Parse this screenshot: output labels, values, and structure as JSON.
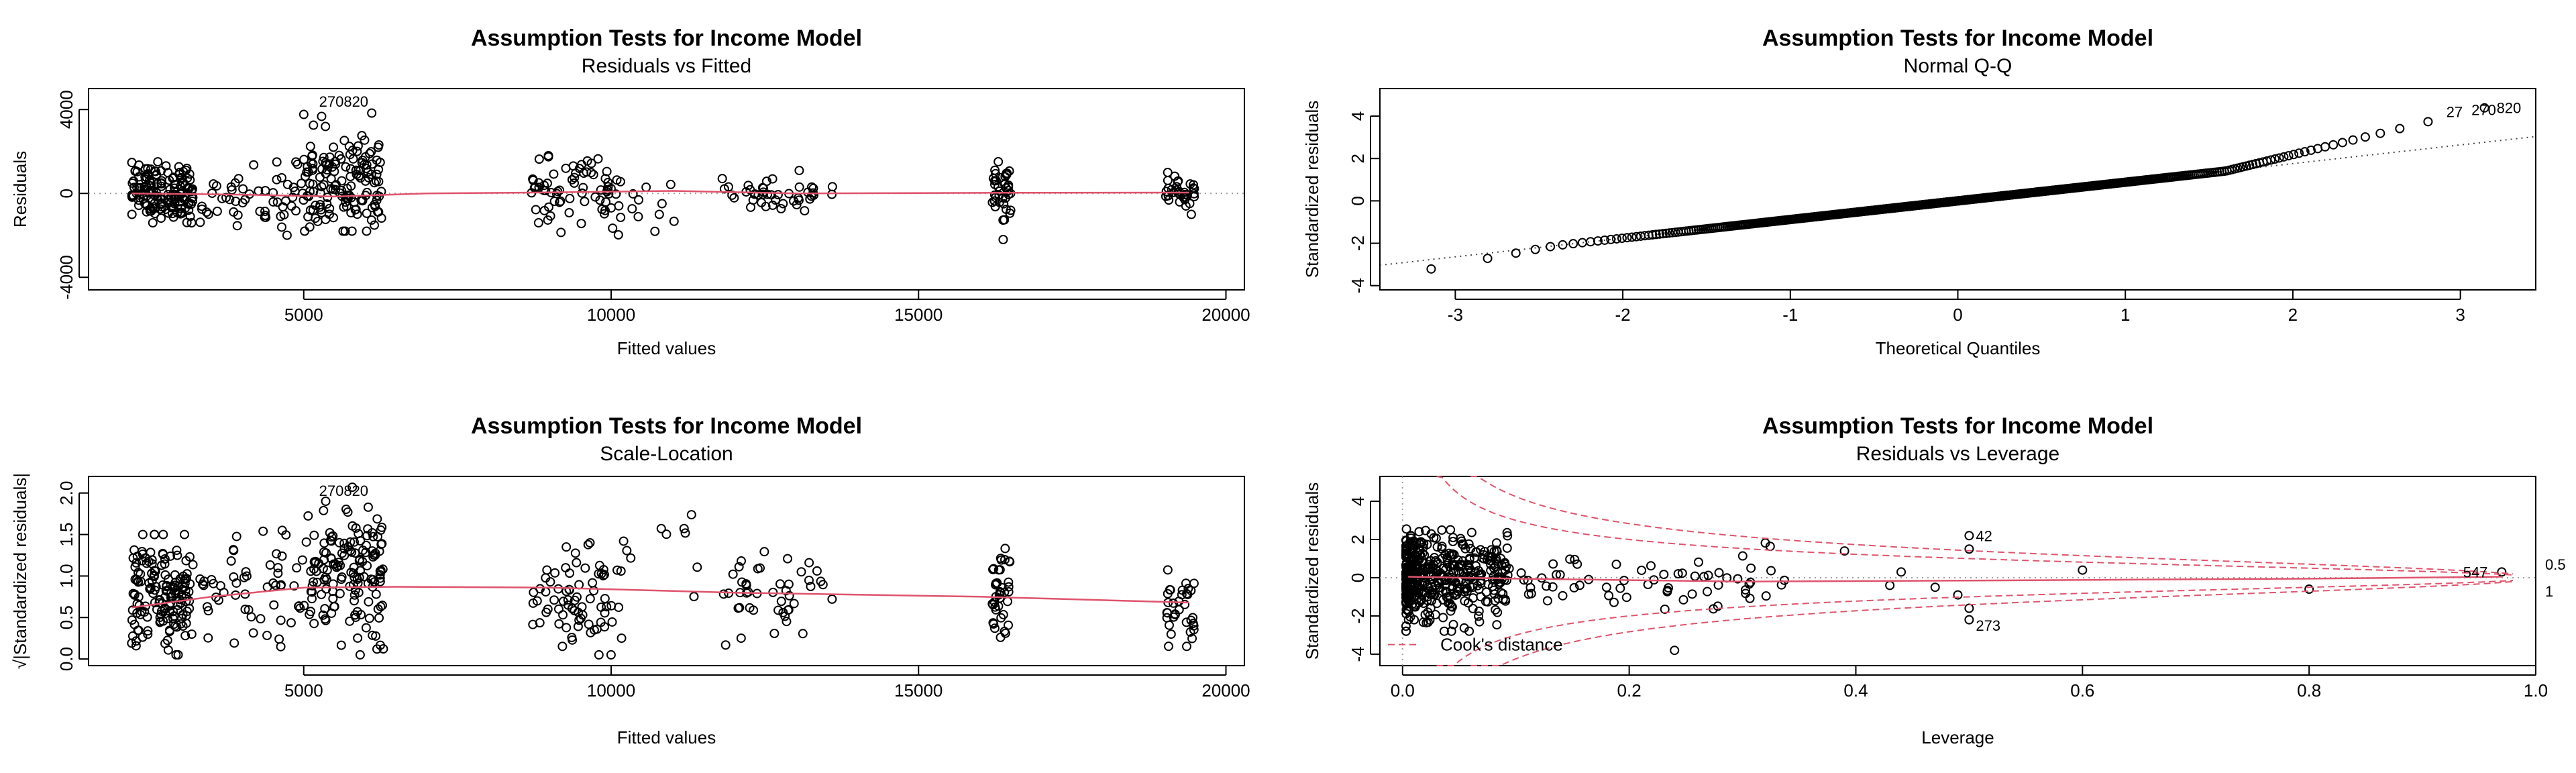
{
  "chart_data": [
    {
      "type": "scatter",
      "title": "Assumption Tests for Income Model",
      "subtitle": "Residuals vs Fitted",
      "xlabel": "Fitted values",
      "ylabel": "Residuals",
      "xlim": [
        1500,
        20300
      ],
      "ylim": [
        -4600,
        5000
      ],
      "xticks": [
        5000,
        10000,
        15000,
        20000
      ],
      "yticks": [
        -4000,
        0,
        4000
      ],
      "reference_line": {
        "y": 0,
        "style": "dotted",
        "color": "#9e9e9e"
      },
      "smooth_color": "#df536b",
      "smooth": [
        [
          2200,
          0
        ],
        [
          4000,
          -60
        ],
        [
          5500,
          -150
        ],
        [
          7000,
          0
        ],
        [
          9000,
          50
        ],
        [
          11000,
          120
        ],
        [
          13000,
          0
        ],
        [
          16400,
          30
        ],
        [
          19400,
          40
        ]
      ],
      "point_labels": [
        {
          "text": "270820",
          "x": 5650,
          "y": 4400
        }
      ],
      "clusters": [
        {
          "x": [
            2200,
            3200
          ],
          "y": [
            -1400,
            1900
          ],
          "n": 160
        },
        {
          "x": [
            3300,
            5000
          ],
          "y": [
            -2500,
            1500
          ],
          "n": 55
        },
        {
          "x": [
            5000,
            6300
          ],
          "y": [
            -1800,
            4400
          ],
          "n": 150
        },
        {
          "x": [
            8700,
            10200
          ],
          "y": [
            -2000,
            1800
          ],
          "n": 75
        },
        {
          "x": [
            10200,
            11500
          ],
          "y": [
            -3300,
            500
          ],
          "n": 10
        },
        {
          "x": [
            11800,
            13600
          ],
          "y": [
            -1500,
            1400
          ],
          "n": 45
        },
        {
          "x": [
            16200,
            16500
          ],
          "y": [
            -2200,
            1600
          ],
          "n": 40
        },
        {
          "x": [
            19000,
            19500
          ],
          "y": [
            -1000,
            1000
          ],
          "n": 35
        }
      ]
    },
    {
      "type": "scatter",
      "title": "Assumption Tests for Income Model",
      "subtitle": "Normal Q-Q",
      "xlabel": "Theoretical Quantiles",
      "ylabel": "Standardized residuals",
      "xlim": [
        -3.45,
        3.45
      ],
      "ylim": [
        -4.2,
        5.3
      ],
      "xticks": [
        -3,
        -2,
        -1,
        0,
        1,
        2,
        3
      ],
      "yticks": [
        -4,
        -2,
        0,
        2,
        4
      ],
      "reference_line": {
        "slope": 0.88,
        "intercept": 0,
        "style": "dotted",
        "color": "#444444"
      },
      "n_points": 600,
      "point_labels": [
        {
          "text": "27",
          "x": 2.9,
          "y": 4.2
        },
        {
          "text": "270",
          "x": 3.05,
          "y": 4.3
        },
        {
          "text": "820",
          "x": 3.2,
          "y": 4.4
        }
      ]
    },
    {
      "type": "scatter",
      "title": "Assumption Tests for Income Model",
      "subtitle": "Scale-Location",
      "xlabel": "Fitted values",
      "ylabel": "√|Standardized residuals|",
      "xlim": [
        1500,
        20300
      ],
      "ylim": [
        -0.08,
        2.2
      ],
      "xticks": [
        5000,
        10000,
        15000,
        20000
      ],
      "yticks": [
        0.0,
        0.5,
        1.0,
        1.5,
        2.0
      ],
      "smooth_color": "#df536b",
      "smooth": [
        [
          2200,
          0.62
        ],
        [
          3500,
          0.75
        ],
        [
          5000,
          0.86
        ],
        [
          6500,
          0.87
        ],
        [
          9000,
          0.86
        ],
        [
          12000,
          0.8
        ],
        [
          16000,
          0.75
        ],
        [
          19400,
          0.68
        ]
      ],
      "point_labels": [
        {
          "text": "270820",
          "x": 5650,
          "y": 2.03
        }
      ],
      "clusters": [
        {
          "x": [
            2200,
            3200
          ],
          "y": [
            0.05,
            1.5
          ],
          "n": 160
        },
        {
          "x": [
            3300,
            5000
          ],
          "y": [
            0.1,
            1.55
          ],
          "n": 55
        },
        {
          "x": [
            5000,
            6300
          ],
          "y": [
            0.05,
            2.07
          ],
          "n": 150
        },
        {
          "x": [
            8700,
            10200
          ],
          "y": [
            0.05,
            1.4
          ],
          "n": 75
        },
        {
          "x": [
            10200,
            11500
          ],
          "y": [
            0.3,
            1.9
          ],
          "n": 10
        },
        {
          "x": [
            11800,
            13600
          ],
          "y": [
            0.05,
            1.3
          ],
          "n": 45
        },
        {
          "x": [
            16200,
            16500
          ],
          "y": [
            0.05,
            1.55
          ],
          "n": 40
        },
        {
          "x": [
            19000,
            19500
          ],
          "y": [
            0.1,
            1.1
          ],
          "n": 35
        }
      ]
    },
    {
      "type": "scatter",
      "title": "Assumption Tests for Income Model",
      "subtitle": "Residuals vs Leverage",
      "xlabel": "Leverage",
      "ylabel": "Standardized residuals",
      "xlim": [
        -0.02,
        1.0
      ],
      "ylim": [
        -4.6,
        5.3
      ],
      "xticks": [
        0.0,
        0.2,
        0.4,
        0.6,
        0.8,
        1.0
      ],
      "yticks": [
        -4,
        -2,
        0,
        2,
        4
      ],
      "smooth_color": "#df536b",
      "cooks_color": "#df536b",
      "cooks_levels": [
        "0.5",
        "1"
      ],
      "legend": {
        "label": "Cook's distance",
        "position": "bottom-left"
      },
      "point_labels": [
        {
          "text": "42",
          "x": 0.5,
          "y": 2.2
        },
        {
          "text": "273",
          "x": 0.5,
          "y": -2.5
        },
        {
          "text": "547",
          "x": 0.96,
          "y": 0.3
        }
      ],
      "n_points": 600
    }
  ]
}
